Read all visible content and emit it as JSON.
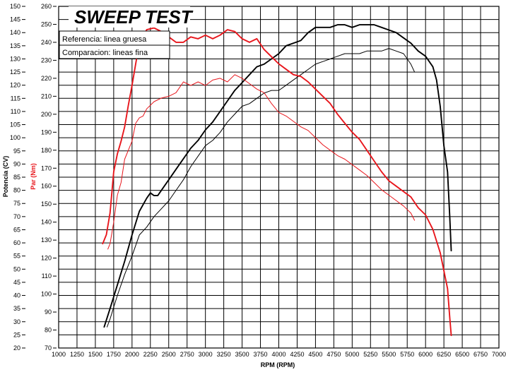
{
  "chart_data": {
    "type": "line",
    "title": "SWEEP TEST",
    "xlabel": "RPM (RPM)",
    "ylabel_left": "Potencia (CV)",
    "ylabel_right": "Par (Nm)",
    "legend": [
      "Referencia: linea gruesa",
      "Comparacion: lineas fina"
    ],
    "xlim": [
      1000,
      7000
    ],
    "xticks": [
      1000,
      1250,
      1500,
      1750,
      2000,
      2250,
      2500,
      2750,
      3000,
      3250,
      3500,
      3750,
      4000,
      4250,
      4500,
      4750,
      5000,
      5250,
      5500,
      5750,
      6000,
      6250,
      6500,
      6750,
      7000
    ],
    "power_axis": {
      "ylim": [
        20,
        150
      ],
      "ticks": [
        20,
        25,
        30,
        35,
        40,
        45,
        50,
        55,
        60,
        65,
        70,
        75,
        80,
        85,
        90,
        95,
        100,
        105,
        110,
        115,
        120,
        125,
        130,
        135,
        140,
        145,
        150
      ]
    },
    "torque_axis": {
      "ylim": [
        70,
        260
      ],
      "ticks": [
        70,
        80,
        90,
        100,
        110,
        120,
        130,
        140,
        150,
        160,
        170,
        180,
        190,
        200,
        210,
        220,
        230,
        240,
        250,
        260
      ]
    },
    "grid": true,
    "colors": {
      "power": "#000000",
      "torque": "#e8161c",
      "grid": "#000000"
    },
    "series": [
      {
        "name": "Referencia: linea gruesa",
        "quantity": "Potencia",
        "points": [
          [
            1620,
            28
          ],
          [
            1700,
            35
          ],
          [
            1800,
            44
          ],
          [
            1900,
            53
          ],
          [
            2000,
            63
          ],
          [
            2100,
            72
          ],
          [
            2200,
            77
          ],
          [
            2250,
            79
          ],
          [
            2300,
            78
          ],
          [
            2350,
            78
          ],
          [
            2400,
            80
          ],
          [
            2500,
            84
          ],
          [
            2600,
            88
          ],
          [
            2700,
            92
          ],
          [
            2800,
            96
          ],
          [
            2900,
            99
          ],
          [
            3000,
            103
          ],
          [
            3100,
            106
          ],
          [
            3200,
            110
          ],
          [
            3300,
            114
          ],
          [
            3400,
            118
          ],
          [
            3500,
            121
          ],
          [
            3600,
            124
          ],
          [
            3700,
            127
          ],
          [
            3800,
            128
          ],
          [
            3900,
            130
          ],
          [
            4000,
            132
          ],
          [
            4100,
            135
          ],
          [
            4200,
            136
          ],
          [
            4300,
            137
          ],
          [
            4400,
            140
          ],
          [
            4500,
            142
          ],
          [
            4600,
            142
          ],
          [
            4700,
            142
          ],
          [
            4800,
            143
          ],
          [
            4900,
            143
          ],
          [
            5000,
            142
          ],
          [
            5100,
            143
          ],
          [
            5200,
            143
          ],
          [
            5300,
            143
          ],
          [
            5400,
            142
          ],
          [
            5500,
            141
          ],
          [
            5600,
            140
          ],
          [
            5700,
            138
          ],
          [
            5800,
            136
          ],
          [
            5900,
            133
          ],
          [
            6000,
            131
          ],
          [
            6100,
            127
          ],
          [
            6150,
            122
          ],
          [
            6200,
            112
          ],
          [
            6250,
            97
          ],
          [
            6300,
            87
          ],
          [
            6330,
            70
          ],
          [
            6350,
            57
          ]
        ]
      },
      {
        "name": "Comparacion: lineas fina",
        "quantity": "Potencia",
        "points": [
          [
            1660,
            28
          ],
          [
            1700,
            31
          ],
          [
            1800,
            40
          ],
          [
            1900,
            48
          ],
          [
            2000,
            55
          ],
          [
            2100,
            63
          ],
          [
            2200,
            66
          ],
          [
            2300,
            70
          ],
          [
            2400,
            73
          ],
          [
            2500,
            76
          ],
          [
            2600,
            80
          ],
          [
            2700,
            84
          ],
          [
            2800,
            89
          ],
          [
            2900,
            93
          ],
          [
            3000,
            97
          ],
          [
            3100,
            99
          ],
          [
            3200,
            102
          ],
          [
            3300,
            106
          ],
          [
            3400,
            109
          ],
          [
            3500,
            112
          ],
          [
            3600,
            113
          ],
          [
            3700,
            115
          ],
          [
            3800,
            117
          ],
          [
            3900,
            118
          ],
          [
            4000,
            118
          ],
          [
            4100,
            120
          ],
          [
            4200,
            122
          ],
          [
            4300,
            124
          ],
          [
            4400,
            126
          ],
          [
            4500,
            128
          ],
          [
            4600,
            129
          ],
          [
            4700,
            130
          ],
          [
            4800,
            131
          ],
          [
            4900,
            132
          ],
          [
            5000,
            132
          ],
          [
            5100,
            132
          ],
          [
            5200,
            133
          ],
          [
            5300,
            133
          ],
          [
            5400,
            133
          ],
          [
            5500,
            134
          ],
          [
            5600,
            133
          ],
          [
            5700,
            132
          ],
          [
            5800,
            128
          ],
          [
            5850,
            125
          ]
        ]
      },
      {
        "name": "Referencia: linea gruesa",
        "quantity": "Par",
        "points": [
          [
            1600,
            128
          ],
          [
            1650,
            133
          ],
          [
            1700,
            145
          ],
          [
            1750,
            168
          ],
          [
            1800,
            178
          ],
          [
            1850,
            185
          ],
          [
            1900,
            193
          ],
          [
            1950,
            205
          ],
          [
            2000,
            216
          ],
          [
            2050,
            228
          ],
          [
            2100,
            240
          ],
          [
            2200,
            247
          ],
          [
            2300,
            248
          ],
          [
            2400,
            246
          ],
          [
            2500,
            243
          ],
          [
            2600,
            240
          ],
          [
            2700,
            240
          ],
          [
            2800,
            243
          ],
          [
            2900,
            242
          ],
          [
            3000,
            244
          ],
          [
            3100,
            242
          ],
          [
            3200,
            244
          ],
          [
            3300,
            247
          ],
          [
            3400,
            246
          ],
          [
            3500,
            242
          ],
          [
            3600,
            240
          ],
          [
            3700,
            242
          ],
          [
            3800,
            236
          ],
          [
            3900,
            232
          ],
          [
            4000,
            228
          ],
          [
            4100,
            225
          ],
          [
            4200,
            222
          ],
          [
            4300,
            221
          ],
          [
            4400,
            218
          ],
          [
            4500,
            214
          ],
          [
            4600,
            210
          ],
          [
            4700,
            206
          ],
          [
            4800,
            200
          ],
          [
            4900,
            195
          ],
          [
            5000,
            190
          ],
          [
            5100,
            186
          ],
          [
            5200,
            180
          ],
          [
            5300,
            174
          ],
          [
            5400,
            168
          ],
          [
            5500,
            163
          ],
          [
            5600,
            160
          ],
          [
            5700,
            157
          ],
          [
            5800,
            154
          ],
          [
            5900,
            148
          ],
          [
            6000,
            144
          ],
          [
            6100,
            136
          ],
          [
            6200,
            123
          ],
          [
            6250,
            113
          ],
          [
            6300,
            103
          ],
          [
            6330,
            87
          ],
          [
            6350,
            77
          ]
        ]
      },
      {
        "name": "Comparacion: lineas fina",
        "quantity": "Par",
        "points": [
          [
            1670,
            125
          ],
          [
            1700,
            128
          ],
          [
            1750,
            140
          ],
          [
            1800,
            155
          ],
          [
            1850,
            162
          ],
          [
            1900,
            175
          ],
          [
            1950,
            180
          ],
          [
            2000,
            185
          ],
          [
            2050,
            195
          ],
          [
            2100,
            198
          ],
          [
            2150,
            199
          ],
          [
            2200,
            203
          ],
          [
            2300,
            207
          ],
          [
            2400,
            209
          ],
          [
            2500,
            210
          ],
          [
            2600,
            212
          ],
          [
            2700,
            218
          ],
          [
            2800,
            216
          ],
          [
            2900,
            218
          ],
          [
            3000,
            216
          ],
          [
            3100,
            219
          ],
          [
            3200,
            220
          ],
          [
            3300,
            218
          ],
          [
            3400,
            222
          ],
          [
            3500,
            220
          ],
          [
            3600,
            217
          ],
          [
            3700,
            214
          ],
          [
            3800,
            212
          ],
          [
            3900,
            206
          ],
          [
            4000,
            201
          ],
          [
            4100,
            199
          ],
          [
            4200,
            196
          ],
          [
            4300,
            193
          ],
          [
            4400,
            191
          ],
          [
            4500,
            187
          ],
          [
            4600,
            183
          ],
          [
            4700,
            180
          ],
          [
            4800,
            177
          ],
          [
            4900,
            175
          ],
          [
            5000,
            172
          ],
          [
            5100,
            169
          ],
          [
            5200,
            166
          ],
          [
            5300,
            162
          ],
          [
            5400,
            158
          ],
          [
            5500,
            155
          ],
          [
            5600,
            152
          ],
          [
            5700,
            149
          ],
          [
            5800,
            145
          ],
          [
            5850,
            141
          ]
        ]
      }
    ]
  }
}
